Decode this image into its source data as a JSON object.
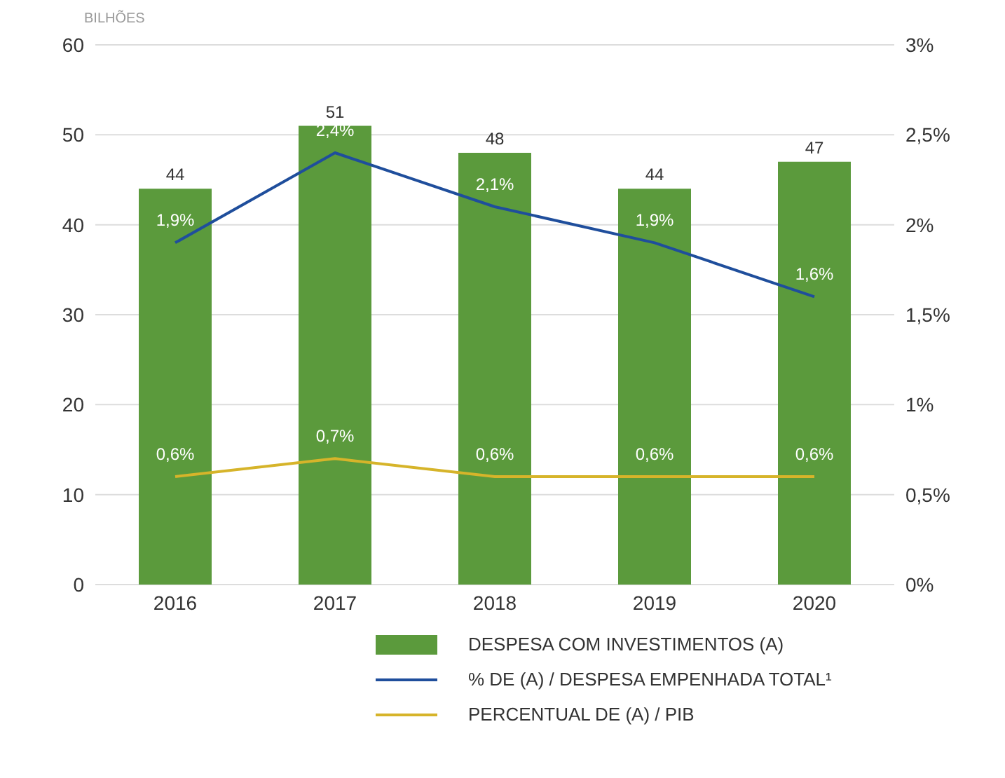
{
  "chart_data": {
    "type": "bar",
    "ylabel": "BILHÕES",
    "categories": [
      "2016",
      "2017",
      "2018",
      "2019",
      "2020"
    ],
    "series": [
      {
        "name": "DESPESA COM INVESTIMENTOS (A)",
        "color": "#5b9a3c",
        "values": [
          44,
          51,
          48,
          44,
          47
        ],
        "value_labels": [
          "44",
          "51",
          "48",
          "44",
          "47"
        ]
      },
      {
        "name": "% DE (A) / DESPESA EMPENHADA TOTAL¹",
        "type": "line",
        "axis": "y2",
        "color": "#1f4e9c",
        "values": [
          1.9,
          2.4,
          2.1,
          1.9,
          1.6
        ],
        "value_labels": [
          "1,9%",
          "2,4%",
          "2,1%",
          "1,9%",
          "1,6%"
        ]
      },
      {
        "name": "PERCENTUAL DE (A) / PIB",
        "type": "line",
        "axis": "y2",
        "color": "#d6b42a",
        "values": [
          0.6,
          0.7,
          0.6,
          0.6,
          0.6
        ],
        "value_labels": [
          "0,6%",
          "0,7%",
          "0,6%",
          "0,6%",
          "0,6%"
        ]
      }
    ],
    "ylim": [
      0,
      60
    ],
    "yticks": [
      0,
      10,
      20,
      30,
      40,
      50,
      60
    ],
    "y2lim": [
      0,
      3
    ],
    "y2ticks": [
      {
        "value": 0,
        "label": "0%"
      },
      {
        "value": 0.5,
        "label": "0,5%"
      },
      {
        "value": 1,
        "label": "1%"
      },
      {
        "value": 1.5,
        "label": "1,5%"
      },
      {
        "value": 2,
        "label": "2%"
      },
      {
        "value": 2.5,
        "label": "2,5%"
      },
      {
        "value": 3,
        "label": "3%"
      }
    ],
    "grid": "y",
    "legend": "bottom right",
    "marker": "none",
    "line_style": "solid"
  }
}
